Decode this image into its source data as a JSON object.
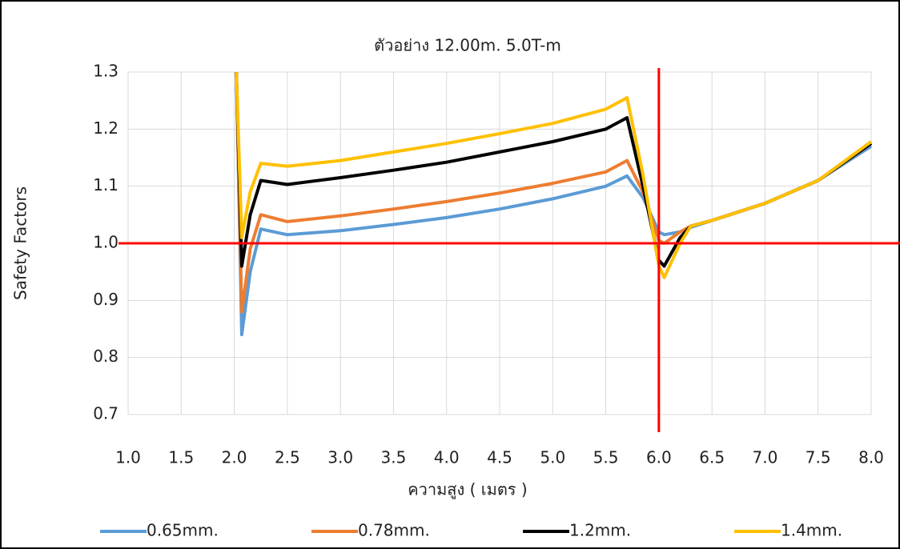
{
  "chart_data": {
    "type": "line",
    "title": "ตัวอย่าง 12.00m. 5.0T-m",
    "x_label": "ความสูง ( เมตร )",
    "y_label": "Safety Factors",
    "x": [
      2.02,
      2.07,
      2.15,
      2.25,
      2.5,
      3.0,
      3.5,
      4.0,
      4.5,
      5.0,
      5.5,
      5.7,
      5.85,
      6.0,
      6.05,
      6.2,
      6.3,
      6.5,
      7.0,
      7.5,
      8.0
    ],
    "series": [
      {
        "name": "0.65mm.",
        "color": "#5b9bd5",
        "values": [
          1.3,
          0.84,
          0.95,
          1.025,
          1.015,
          1.022,
          1.033,
          1.045,
          1.06,
          1.078,
          1.1,
          1.118,
          1.08,
          1.02,
          1.015,
          1.02,
          1.028,
          1.04,
          1.07,
          1.11,
          1.17
        ]
      },
      {
        "name": "0.78mm.",
        "color": "#ed7d31",
        "values": [
          1.3,
          0.88,
          0.99,
          1.05,
          1.038,
          1.048,
          1.06,
          1.073,
          1.088,
          1.105,
          1.125,
          1.145,
          1.09,
          1.005,
          1.0,
          1.02,
          1.03,
          1.04,
          1.07,
          1.11,
          1.175
        ]
      },
      {
        "name": "1.2mm.",
        "color": "#000000",
        "values": [
          1.3,
          0.96,
          1.05,
          1.11,
          1.103,
          1.115,
          1.128,
          1.142,
          1.16,
          1.178,
          1.2,
          1.22,
          1.1,
          0.97,
          0.96,
          1.01,
          1.03,
          1.04,
          1.07,
          1.11,
          1.175
        ]
      },
      {
        "name": "1.4mm.",
        "color": "#ffc000",
        "values": [
          1.3,
          1.01,
          1.09,
          1.14,
          1.135,
          1.145,
          1.16,
          1.175,
          1.192,
          1.21,
          1.235,
          1.255,
          1.12,
          0.96,
          0.94,
          1.0,
          1.03,
          1.04,
          1.07,
          1.11,
          1.178
        ]
      }
    ],
    "xlim": [
      1.0,
      8.0
    ],
    "ylim": [
      0.7,
      1.3
    ],
    "xticks": [
      {
        "value": 1,
        "label": "1.0"
      },
      1.5,
      {
        "value": 2,
        "label": "2.0"
      },
      2.5,
      {
        "value": 3,
        "label": "3.0"
      },
      3.5,
      {
        "value": 4,
        "label": "4.0"
      },
      4.5,
      {
        "value": 5,
        "label": "5.0"
      },
      5.5,
      {
        "value": 6,
        "label": "6.0"
      },
      6.5,
      {
        "value": 7,
        "label": "7.0"
      },
      7.5,
      {
        "value": 8,
        "label": "8.0"
      }
    ],
    "yticks": [
      0.7,
      0.8,
      0.9,
      {
        "value": 1,
        "label": "1.0"
      },
      1.1,
      1.2,
      1.3
    ],
    "grid": true,
    "reference_lines": {
      "x": 6.0,
      "y": 1.0,
      "color": "#ff0000"
    },
    "legend": "bottom"
  }
}
